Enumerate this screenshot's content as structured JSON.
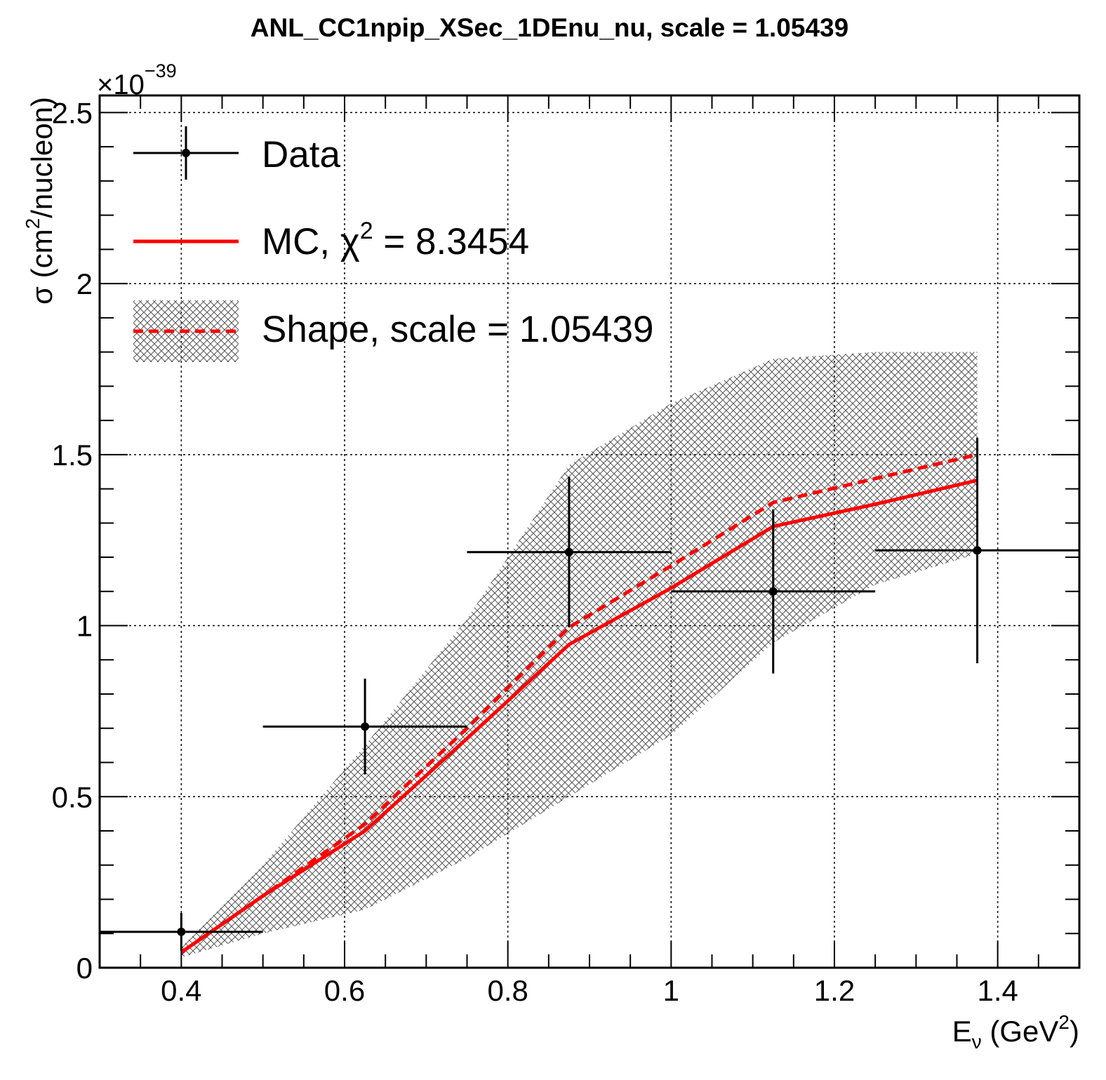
{
  "chart_data": {
    "type": "line",
    "title": "ANL_CC1npip_XSec_1DEnu_nu, scale = 1.05439",
    "exponent_label": "×10",
    "exponent_power": "−39",
    "xlabel": {
      "main": "E",
      "sub": "ν",
      "pre_sup": " (GeV",
      "sup": "2",
      "post_sup": ")"
    },
    "ylabel": {
      "pre": "σ (cm",
      "sup": "2",
      "post": "/nucleon)"
    },
    "xlim": [
      0.3,
      1.5
    ],
    "ylim": [
      0,
      2.55
    ],
    "x_ticks": [
      0.4,
      0.6,
      0.8,
      1,
      1.2,
      1.4
    ],
    "x_tick_labels": [
      "0.4",
      "0.6",
      "0.8",
      "1",
      "1.2",
      "1.4"
    ],
    "y_ticks": [
      0,
      0.5,
      1,
      1.5,
      2,
      2.5
    ],
    "y_tick_labels": [
      "0",
      "0.5",
      "1",
      "1.5",
      "2",
      "2.5"
    ],
    "grid": true,
    "legend_position": "top-left",
    "colors": {
      "data": "#000000",
      "mc": "#ff0000",
      "shape": "#ff0000",
      "band_hatch": "#555555"
    },
    "series": [
      {
        "name": "Data",
        "kind": "points_with_errors",
        "x": [
          0.4,
          0.625,
          0.875,
          1.125,
          1.375
        ],
        "x_low": [
          0.3,
          0.5,
          0.75,
          1.0,
          1.25
        ],
        "x_high": [
          0.5,
          0.75,
          1.0,
          1.25,
          1.5
        ],
        "y": [
          0.105,
          0.705,
          1.215,
          1.1,
          1.22
        ],
        "y_err": [
          0.055,
          0.14,
          0.22,
          0.24,
          0.33
        ]
      },
      {
        "name": "MC",
        "kind": "line",
        "x": [
          0.4,
          0.5,
          0.625,
          0.75,
          0.875,
          1.0,
          1.125,
          1.25,
          1.375
        ],
        "y": [
          0.045,
          0.21,
          0.4,
          0.67,
          0.945,
          1.11,
          1.29,
          1.355,
          1.425
        ]
      },
      {
        "name": "Shape",
        "kind": "dashed_line_with_band",
        "x": [
          0.4,
          0.5,
          0.625,
          0.75,
          0.875,
          1.0,
          1.125,
          1.25,
          1.375
        ],
        "y": [
          0.045,
          0.21,
          0.42,
          0.7,
          0.995,
          1.175,
          1.36,
          1.43,
          1.5
        ],
        "band_low": [
          0.03,
          0.1,
          0.17,
          0.32,
          0.5,
          0.68,
          0.95,
          1.12,
          1.21
        ],
        "band_high": [
          0.06,
          0.3,
          0.65,
          1.02,
          1.47,
          1.65,
          1.78,
          1.8,
          1.8
        ]
      }
    ],
    "legend": {
      "data_label": "Data",
      "mc_label_pre": "MC, ",
      "mc_chi": "χ",
      "mc_sup": "2",
      "mc_label_post": " = 8.3454",
      "shape_label": "Shape, scale = 1.05439"
    }
  }
}
